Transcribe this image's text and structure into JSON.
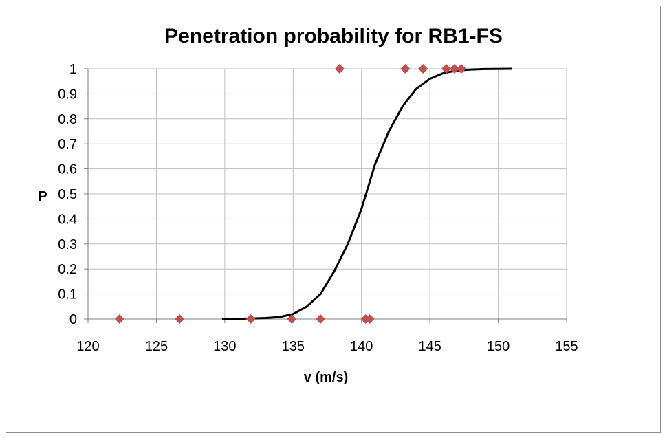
{
  "chart_data": {
    "type": "scatter",
    "title": "Penetration probability for RB1-FS",
    "xlabel": "v (m/s)",
    "ylabel": "P",
    "xlim": [
      120,
      155
    ],
    "ylim": [
      0,
      1
    ],
    "x_ticks": [
      "120",
      "125",
      "130",
      "135",
      "140",
      "145",
      "150",
      "155"
    ],
    "y_ticks": [
      "0",
      "0.1",
      "0.2",
      "0.3",
      "0.4",
      "0.5",
      "0.6",
      "0.7",
      "0.8",
      "0.9",
      "1"
    ],
    "grid": true,
    "marker_color": "#c0504d",
    "line_color": "#000000",
    "series": [
      {
        "type": "scatter",
        "points": [
          {
            "x": 122.3,
            "y": 0
          },
          {
            "x": 126.7,
            "y": 0
          },
          {
            "x": 131.9,
            "y": 0
          },
          {
            "x": 134.9,
            "y": 0
          },
          {
            "x": 137.0,
            "y": 0
          },
          {
            "x": 140.3,
            "y": 0
          },
          {
            "x": 140.6,
            "y": 0
          },
          {
            "x": 138.4,
            "y": 1
          },
          {
            "x": 143.2,
            "y": 1
          },
          {
            "x": 144.5,
            "y": 1
          },
          {
            "x": 146.2,
            "y": 1
          },
          {
            "x": 146.8,
            "y": 1
          },
          {
            "x": 147.3,
            "y": 1
          }
        ]
      },
      {
        "type": "line",
        "points": [
          {
            "x": 129.8,
            "y": 0.0
          },
          {
            "x": 132.0,
            "y": 0.002
          },
          {
            "x": 133.0,
            "y": 0.004
          },
          {
            "x": 134.0,
            "y": 0.008
          },
          {
            "x": 135.0,
            "y": 0.02
          },
          {
            "x": 136.0,
            "y": 0.05
          },
          {
            "x": 137.0,
            "y": 0.1
          },
          {
            "x": 138.0,
            "y": 0.19
          },
          {
            "x": 139.0,
            "y": 0.3
          },
          {
            "x": 140.0,
            "y": 0.44
          },
          {
            "x": 141.0,
            "y": 0.62
          },
          {
            "x": 142.0,
            "y": 0.75
          },
          {
            "x": 143.0,
            "y": 0.85
          },
          {
            "x": 144.0,
            "y": 0.92
          },
          {
            "x": 145.0,
            "y": 0.96
          },
          {
            "x": 146.0,
            "y": 0.983
          },
          {
            "x": 147.0,
            "y": 0.993
          },
          {
            "x": 148.0,
            "y": 0.997
          },
          {
            "x": 149.0,
            "y": 0.999
          },
          {
            "x": 151.0,
            "y": 1.0
          }
        ]
      }
    ]
  }
}
